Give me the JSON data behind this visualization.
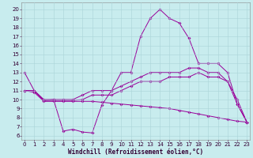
{
  "xlabel": "Windchill (Refroidissement éolien,°C)",
  "x_ticks": [
    0,
    1,
    2,
    3,
    4,
    5,
    6,
    7,
    8,
    9,
    10,
    11,
    12,
    13,
    14,
    15,
    16,
    17,
    18,
    19,
    20,
    21,
    22,
    23
  ],
  "y_ticks": [
    6,
    7,
    8,
    9,
    10,
    11,
    12,
    13,
    14,
    15,
    16,
    17,
    18,
    19,
    20
  ],
  "ylim": [
    5.5,
    20.8
  ],
  "xlim": [
    -0.3,
    23.3
  ],
  "bg_color": "#c8ecee",
  "grid_color": "#aad4d8",
  "line_color": "#990099",
  "curves": [
    [
      13,
      11,
      9.9,
      10.0,
      6.5,
      6.7,
      6.4,
      6.3,
      9.4,
      11.0,
      13.0,
      13.0,
      17.0,
      19.0,
      20.0,
      19.0,
      18.5,
      16.8,
      14.0,
      14.0,
      14.0,
      13.0,
      9.5,
      7.5
    ],
    [
      11,
      11,
      10.0,
      10.0,
      10.0,
      10.0,
      10.5,
      11.0,
      11.0,
      11.0,
      11.5,
      12.0,
      12.5,
      13.0,
      13.0,
      13.0,
      13.0,
      13.5,
      13.5,
      13.0,
      13.0,
      12.0,
      10.0,
      7.5
    ],
    [
      11,
      11,
      9.9,
      9.9,
      9.9,
      9.9,
      10.0,
      10.5,
      10.5,
      10.5,
      11.0,
      11.5,
      12.0,
      12.0,
      12.0,
      12.5,
      12.5,
      12.5,
      13.0,
      12.5,
      12.5,
      12.0,
      9.5,
      7.5
    ],
    [
      11,
      10.8,
      9.8,
      9.8,
      9.8,
      9.8,
      9.8,
      9.8,
      9.7,
      9.6,
      9.5,
      9.4,
      9.3,
      9.2,
      9.1,
      9.0,
      8.8,
      8.6,
      8.4,
      8.2,
      8.0,
      7.8,
      7.6,
      7.5
    ]
  ],
  "tick_fontsize": 5.0,
  "xlabel_fontsize": 5.5,
  "lw": 0.7,
  "ms": 1.8
}
